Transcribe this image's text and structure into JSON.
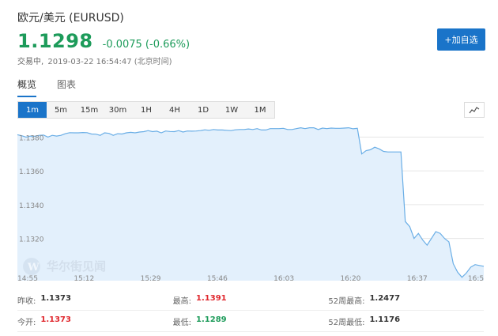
{
  "header": {
    "title": "欧元/美元  (EURUSD)",
    "price": "1.1298",
    "change": "-0.0075 (-0.66%)",
    "status": "交易中,",
    "timestamp": "2019-03-22 16:54:47 (北京时间)",
    "add_button": "+加自选"
  },
  "tabs": [
    {
      "label": "概览",
      "active": true
    },
    {
      "label": "图表",
      "active": false
    }
  ],
  "periods": [
    "1m",
    "5m",
    "15m",
    "30m",
    "1H",
    "4H",
    "1D",
    "1W",
    "1M"
  ],
  "active_period": "1m",
  "chart_data": {
    "type": "area",
    "x_ticks": [
      "14:55",
      "15:12",
      "15:29",
      "15:46",
      "16:03",
      "16:20",
      "16:37",
      "16:5"
    ],
    "y_ticks": [
      "1.1380",
      "1.1360",
      "1.1340",
      "1.1320"
    ],
    "ylim": [
      1.1295,
      1.139
    ],
    "line_color": "#6aaee6",
    "fill_color": "#e3f0fc",
    "watermark": "华尔街见闻",
    "series": [
      {
        "x": [
          0,
          2,
          4,
          6,
          8,
          10,
          12,
          14,
          16,
          18,
          20,
          22,
          24,
          26,
          28,
          30,
          32,
          34,
          36,
          38,
          40,
          42,
          44,
          46,
          48,
          50,
          52,
          54,
          56,
          58,
          60,
          62,
          64,
          66,
          68,
          70,
          72,
          74,
          76,
          78,
          80,
          82,
          84,
          86,
          88,
          90,
          92,
          94,
          96,
          98,
          100,
          102,
          104,
          106,
          108,
          110,
          112,
          114,
          116,
          118,
          120,
          122,
          124,
          126,
          128,
          130,
          132,
          134,
          136,
          138,
          140,
          142,
          144,
          146,
          148,
          150,
          152,
          154,
          156,
          158,
          160,
          162,
          164,
          166,
          168,
          170,
          172,
          174,
          176,
          178,
          180,
          182,
          184,
          186,
          188,
          190,
          192,
          194,
          196,
          198,
          200,
          202,
          204,
          206,
          208,
          210,
          212,
          214
        ],
        "y": [
          1.13814,
          1.13808,
          1.138,
          1.13806,
          1.13805,
          1.1381,
          1.13812,
          1.138,
          1.1381,
          1.13806,
          1.1381,
          1.1382,
          1.13826,
          1.13825,
          1.13825,
          1.13827,
          1.13826,
          1.13818,
          1.13817,
          1.1381,
          1.13825,
          1.13822,
          1.1381,
          1.1382,
          1.13818,
          1.13825,
          1.13828,
          1.13825,
          1.1383,
          1.13832,
          1.13838,
          1.13832,
          1.13835,
          1.13825,
          1.13836,
          1.13833,
          1.13832,
          1.13838,
          1.1383,
          1.13836,
          1.13835,
          1.13836,
          1.13838,
          1.13843,
          1.1384,
          1.13845,
          1.13842,
          1.13842,
          1.1384,
          1.13838,
          1.13843,
          1.13845,
          1.13845,
          1.13848,
          1.13845,
          1.1385,
          1.13842,
          1.13842,
          1.1385,
          1.1385,
          1.1385,
          1.13852,
          1.13845,
          1.13845,
          1.1385,
          1.13855,
          1.1385,
          1.13855,
          1.13855,
          1.13845,
          1.13853,
          1.1385,
          1.13853,
          1.13852,
          1.13852,
          1.13853,
          1.13855,
          1.13849,
          1.13852,
          1.137,
          1.1372,
          1.13725,
          1.1374,
          1.1373,
          1.13715,
          1.13712,
          1.13712,
          1.13712,
          1.13712,
          1.133,
          1.1327,
          1.132,
          1.1323,
          1.1319,
          1.1316,
          1.132,
          1.1324,
          1.1323,
          1.132,
          1.1318,
          1.1305,
          1.13,
          1.1297,
          1.12995,
          1.1303,
          1.13045,
          1.1304,
          1.13035
        ]
      }
    ]
  },
  "stats": [
    [
      {
        "label": "昨收:",
        "value": "1.1373",
        "tone": "neutral"
      },
      {
        "label": "最高:",
        "value": "1.1391",
        "tone": "red"
      },
      {
        "label": "52周最高:",
        "value": "1.2477",
        "tone": "neutral"
      }
    ],
    [
      {
        "label": "今开:",
        "value": "1.1373",
        "tone": "red"
      },
      {
        "label": "最低:",
        "value": "1.1289",
        "tone": "green"
      },
      {
        "label": "52周最低:",
        "value": "1.1176",
        "tone": "neutral"
      }
    ]
  ]
}
